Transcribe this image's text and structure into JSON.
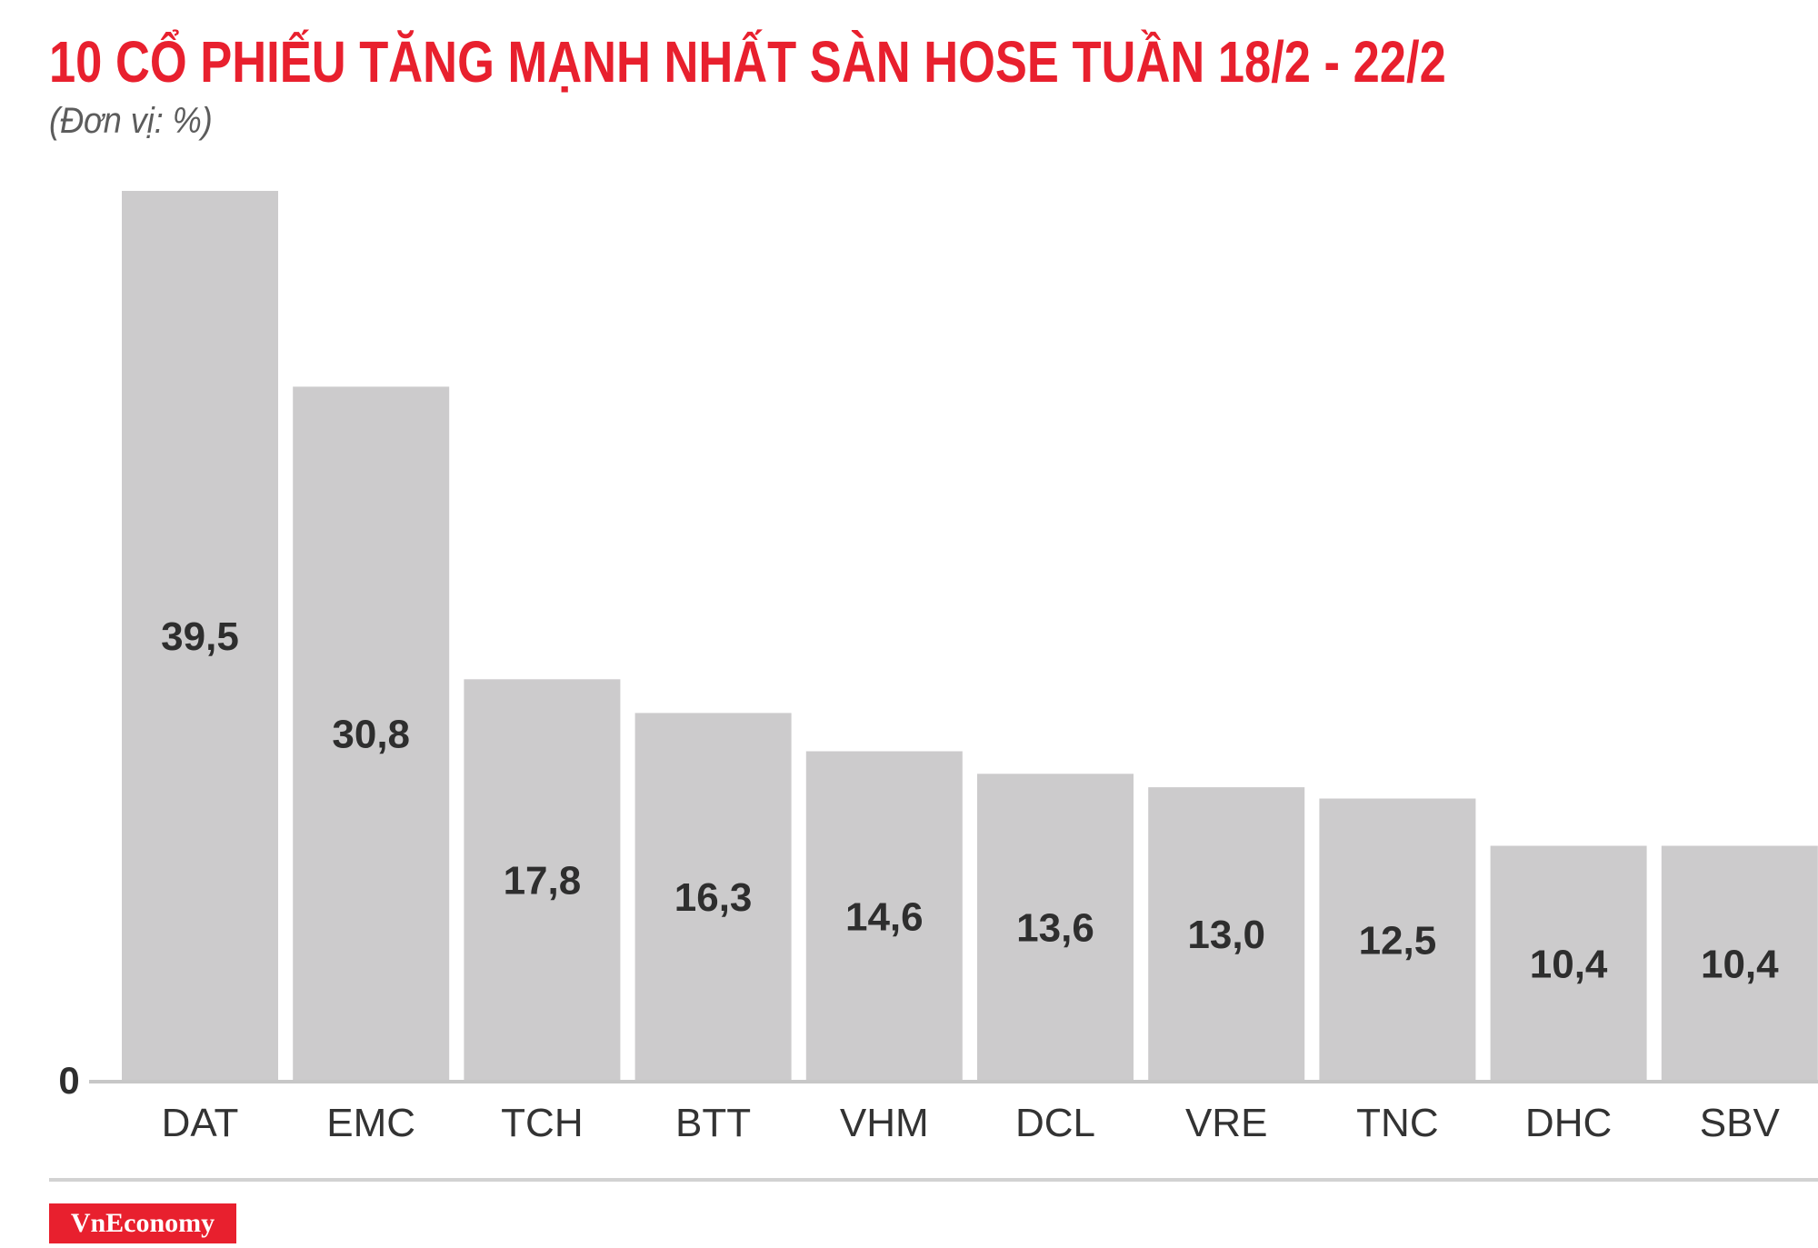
{
  "title": "10 CỔ PHIẾU TĂNG MẠNH NHẤT SÀN HOSE TUẦN 18/2 - 22/2",
  "subtitle": "(Đơn vị: %)",
  "logo": "VnEconomy",
  "colors": {
    "title": "#e8202e",
    "bar": "#cccbcc",
    "value_label": "#2e2e2e",
    "axis": "#c7c7c7",
    "category_label": "#333333",
    "logo_bg": "#e8202e"
  },
  "chart_data": {
    "type": "bar",
    "title": "10 CỔ PHIẾU TĂNG MẠNH NHẤT SÀN HOSE TUẦN 18/2 - 22/2",
    "subtitle": "(Đơn vị: %)",
    "categories": [
      "DAT",
      "EMC",
      "TCH",
      "BTT",
      "VHM",
      "DCL",
      "VRE",
      "TNC",
      "DHC",
      "SBV"
    ],
    "values": [
      39.5,
      30.8,
      17.8,
      16.3,
      14.6,
      13.6,
      13.0,
      12.5,
      10.4,
      10.4
    ],
    "value_labels": [
      "39,5",
      "30,8",
      "17,8",
      "16,3",
      "14,6",
      "13,6",
      "13,0",
      "12,5",
      "10,4",
      "10,4"
    ],
    "y_tick_labels": [
      "0"
    ],
    "xlabel": "",
    "ylabel": "",
    "ylim": [
      0,
      39.5
    ],
    "grid": false,
    "legend": "none"
  }
}
